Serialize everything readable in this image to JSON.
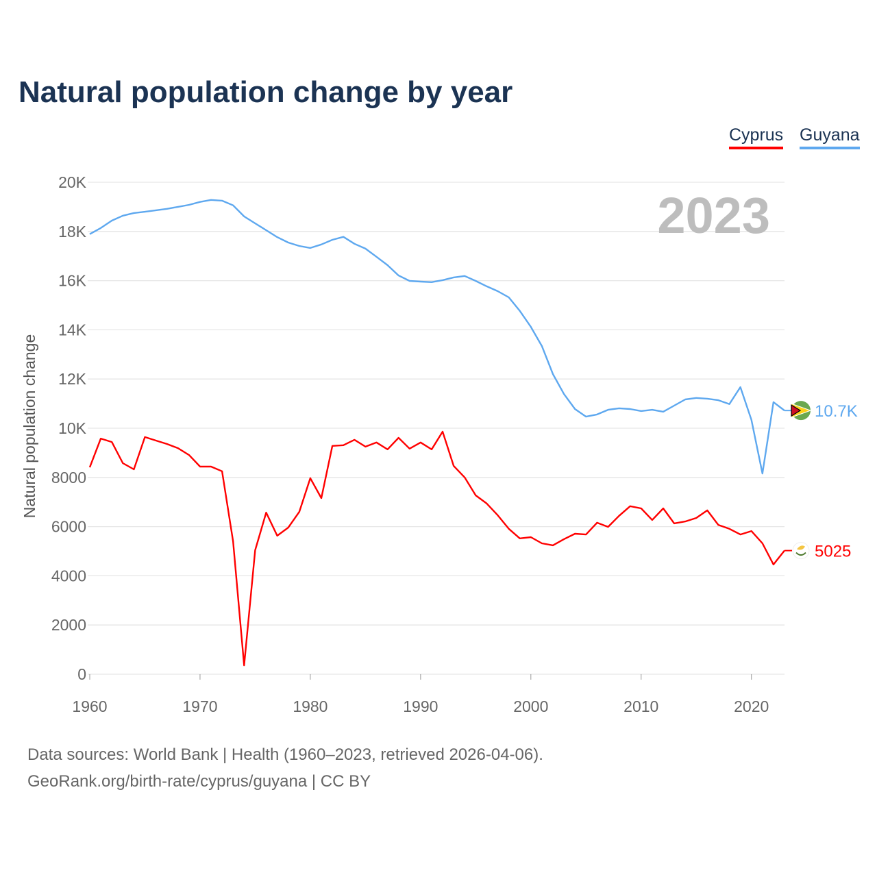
{
  "title": "Natural population change by year",
  "footer": {
    "line1": "Data sources: World Bank | Health (1960–2023, retrieved 2026-04-06).",
    "line2": "GeoRank.org/birth-rate/cyprus/guyana | CC BY"
  },
  "chart_data": {
    "type": "line",
    "title": "Natural population change by year",
    "xlabel": "",
    "ylabel": "Natural population change",
    "year_watermark": "2023",
    "xlim": [
      1960,
      2023
    ],
    "ylim": [
      0,
      20000
    ],
    "x_ticks": [
      "1960",
      "1970",
      "1980",
      "1990",
      "2000",
      "2010",
      "2020"
    ],
    "y_ticks": [
      "0",
      "2000",
      "4000",
      "6000",
      "8000",
      "10K",
      "12K",
      "14K",
      "16K",
      "18K",
      "20K"
    ],
    "grid": true,
    "legend_position": "top-right",
    "x": [
      1960,
      1961,
      1962,
      1963,
      1964,
      1965,
      1966,
      1967,
      1968,
      1969,
      1970,
      1971,
      1972,
      1973,
      1974,
      1975,
      1976,
      1977,
      1978,
      1979,
      1980,
      1981,
      1982,
      1983,
      1984,
      1985,
      1986,
      1987,
      1988,
      1989,
      1990,
      1991,
      1992,
      1993,
      1994,
      1995,
      1996,
      1997,
      1998,
      1999,
      2000,
      2001,
      2002,
      2003,
      2004,
      2005,
      2006,
      2007,
      2008,
      2009,
      2010,
      2011,
      2012,
      2013,
      2014,
      2015,
      2016,
      2017,
      2018,
      2019,
      2020,
      2021,
      2022,
      2023
    ],
    "series": [
      {
        "name": "Cyprus",
        "color": "#ff0000",
        "end_label": "5025",
        "flag_icon": "cyprus-flag-icon",
        "values": [
          8410,
          9580,
          9440,
          8580,
          8330,
          9640,
          9500,
          9360,
          9190,
          8910,
          8440,
          8440,
          8250,
          5400,
          360,
          5040,
          6570,
          5630,
          5960,
          6600,
          7970,
          7160,
          9280,
          9310,
          9530,
          9250,
          9420,
          9140,
          9610,
          9170,
          9420,
          9140,
          9860,
          8470,
          8000,
          7270,
          6940,
          6460,
          5910,
          5520,
          5570,
          5320,
          5240,
          5490,
          5710,
          5680,
          6160,
          5990,
          6440,
          6830,
          6740,
          6270,
          6740,
          6130,
          6210,
          6350,
          6660,
          6070,
          5910,
          5680,
          5820,
          5320,
          4460,
          5025
        ]
      },
      {
        "name": "Guyana",
        "color": "#5ea8ef",
        "end_label": "10.7K",
        "flag_icon": "guyana-flag-icon",
        "values": [
          17890,
          18140,
          18440,
          18640,
          18750,
          18800,
          18860,
          18920,
          19000,
          19080,
          19200,
          19280,
          19250,
          19060,
          18610,
          18330,
          18050,
          17770,
          17550,
          17410,
          17330,
          17470,
          17660,
          17780,
          17500,
          17300,
          16970,
          16630,
          16210,
          15990,
          15960,
          15940,
          16020,
          16130,
          16190,
          15990,
          15770,
          15570,
          15320,
          14770,
          14120,
          13340,
          12200,
          11390,
          10780,
          10470,
          10560,
          10750,
          10810,
          10780,
          10700,
          10750,
          10670,
          10920,
          11170,
          11230,
          11200,
          11140,
          10980,
          11670,
          10340,
          8160,
          11060,
          10720
        ]
      }
    ]
  }
}
